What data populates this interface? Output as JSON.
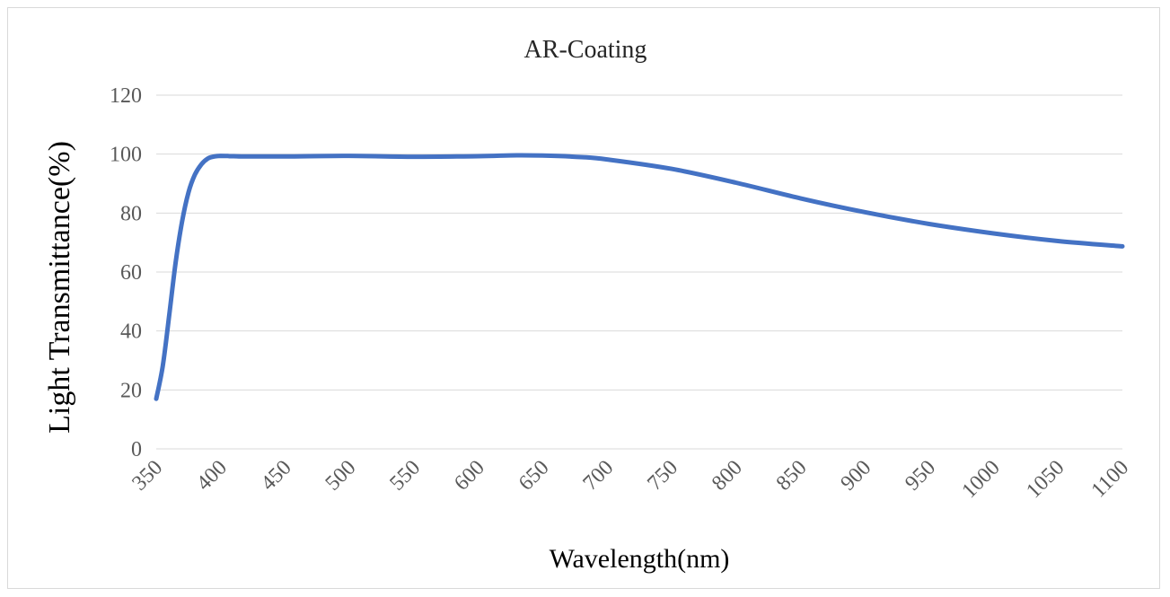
{
  "chart_data": {
    "type": "line",
    "title": "AR-Coating",
    "xlabel": "Wavelength(nm)",
    "ylabel": "Light Transmittance(%)",
    "xlim": [
      350,
      1100
    ],
    "ylim": [
      0,
      120
    ],
    "x_ticks": [
      "350",
      "400",
      "450",
      "500",
      "550",
      "600",
      "650",
      "700",
      "750",
      "800",
      "850",
      "900",
      "950",
      "1000",
      "1050",
      "1100"
    ],
    "y_ticks": [
      "0",
      "20",
      "40",
      "60",
      "80",
      "100",
      "120"
    ],
    "grid": true,
    "legend": "none",
    "line_color": "#4472C4",
    "series": [
      {
        "x": [
          350,
          355,
          360,
          365,
          370,
          375,
          380,
          385,
          390,
          395,
          400,
          410,
          420,
          450,
          500,
          550,
          600,
          630,
          650,
          680,
          700,
          750,
          800,
          850,
          900,
          950,
          1000,
          1050,
          1100
        ],
        "y": [
          17,
          28,
          45,
          63,
          77,
          87,
          93,
          96.5,
          98.5,
          99.2,
          99.4,
          99.3,
          99.2,
          99.2,
          99.4,
          99.1,
          99.3,
          99.6,
          99.5,
          99,
          98.2,
          95,
          90.3,
          85,
          80.3,
          76.3,
          73.1,
          70.5,
          68.7
        ]
      }
    ]
  }
}
